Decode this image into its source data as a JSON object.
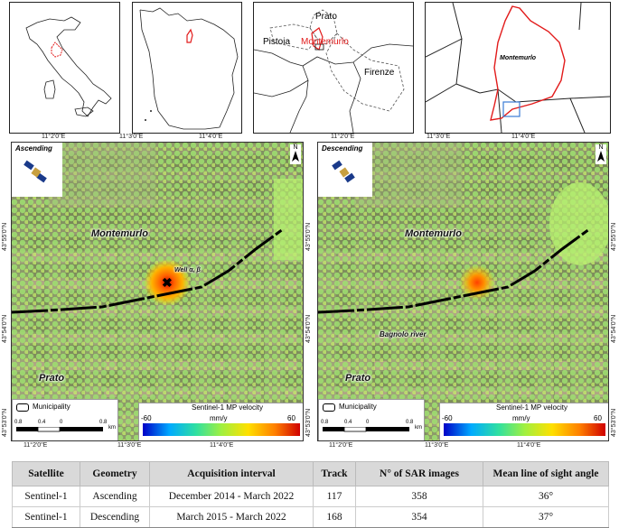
{
  "insets": {
    "region": {
      "labels": {
        "prato": "Prato",
        "pistoia": "Pistoia",
        "montemurlo": "Montemurlo",
        "firenze": "Firenze"
      }
    },
    "detail": {
      "label": "Montemurlo"
    }
  },
  "grid_labels": {
    "x": [
      "11°2'0\"E",
      "11°3'0\"E",
      "11°4'0\"E"
    ],
    "y": [
      "43°55'0\"N",
      "43°54'0\"N",
      "43°53'0\"N"
    ]
  },
  "panels": {
    "ascending": {
      "title": "Ascending",
      "labels": {
        "montemurlo": "Montemurlo",
        "prato": "Prato",
        "well": "Well α, β"
      }
    },
    "descending": {
      "title": "Descending",
      "labels": {
        "montemurlo": "Montemurlo",
        "prato": "Prato",
        "river": "Bagnolo river"
      }
    }
  },
  "legend": {
    "municipality": "Municipality",
    "scale_ticks": [
      "0.8",
      "0.4",
      "0",
      "0.8"
    ],
    "scale_unit": "km",
    "velocity_title": "Sentinel-1 MP velocity",
    "velocity_unit": "mm/y",
    "velocity_min": "-60",
    "velocity_max": "60",
    "north": "N"
  },
  "table": {
    "headers": [
      "Satellite",
      "Geometry",
      "Acquisition interval",
      "Track",
      "N° of SAR images",
      "Mean line of sight angle"
    ],
    "rows": [
      [
        "Sentinel-1",
        "Ascending",
        "December 2014 - March 2022",
        "117",
        "358",
        "36°"
      ],
      [
        "Sentinel-1",
        "Descending",
        "March 2015 - March 2022",
        "168",
        "354",
        "37°"
      ]
    ]
  },
  "colors": {
    "municipality_line": "#e21b1b",
    "highlight_box": "#3a7bd5",
    "colorbar": [
      "#0000c8",
      "#00aaff",
      "#30e0a0",
      "#a0f040",
      "#ffe000",
      "#ff8000",
      "#d00000"
    ]
  }
}
